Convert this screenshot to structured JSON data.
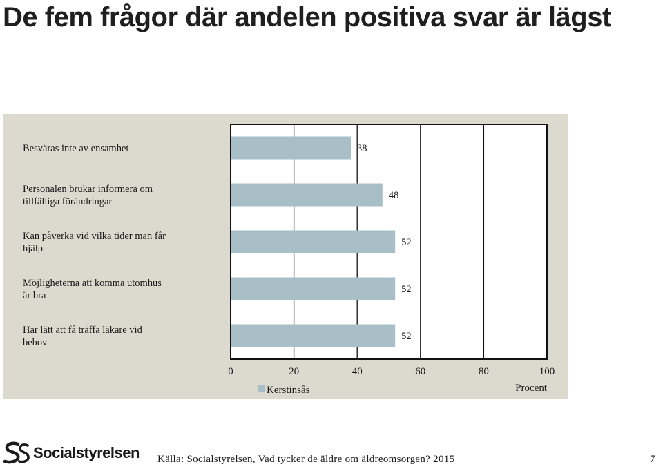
{
  "page": {
    "title": "De fem frågor där andelen positiva svar är lägst",
    "source": "Källa: Socialstyrelsen, Vad tycker de äldre om äldreomsorgen? 2015",
    "page_number": "7",
    "logo": {
      "text": "Socialstyrelsen",
      "icon": "socialstyrelsen-logo-icon"
    }
  },
  "colors": {
    "bar": "#a9bfc8",
    "panel": "#dcd9cf",
    "plot_bg": "#ffffff",
    "grid": "#111111"
  },
  "chart_data": {
    "type": "bar",
    "orientation": "horizontal",
    "categories": [
      "Besväras inte av ensamhet",
      "Personalen brukar informera om tillfälliga förändringar",
      "Kan påverka vid vilka tider man får hjälp",
      "Möjligheterna att komma utomhus är bra",
      "Har lätt att få träffa läkare vid behov"
    ],
    "category_lines": [
      [
        "Besväras inte av ensamhet"
      ],
      [
        "Personalen brukar informera om",
        "tillfälliga förändringar"
      ],
      [
        "Kan påverka vid vilka tider man får",
        "hjälp"
      ],
      [
        "Möjligheterna att komma utomhus",
        "är bra"
      ],
      [
        "Har lätt att få träffa läkare vid",
        "behov"
      ]
    ],
    "series": [
      {
        "name": "Kerstinsås",
        "values": [
          38,
          48,
          52,
          52,
          52
        ]
      }
    ],
    "xlabel": "Procent",
    "xlim": [
      0,
      100
    ],
    "xticks": [
      0,
      20,
      40,
      60,
      80,
      100
    ],
    "grid": true,
    "legend_position": "bottom"
  }
}
